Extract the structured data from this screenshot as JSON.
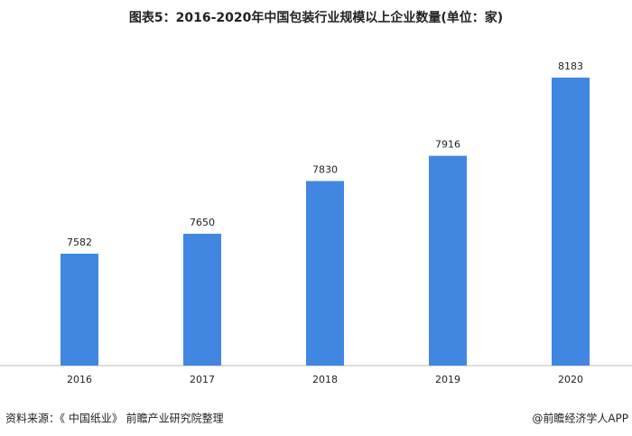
{
  "chart_data": {
    "type": "bar",
    "title": "图表5：2016-2020年中国包装行业规模以上企业数量(单位：家)",
    "categories": [
      "2016",
      "2017",
      "2018",
      "2019",
      "2020"
    ],
    "values": [
      7582,
      7650,
      7830,
      7916,
      8183
    ],
    "color": "#4187e2",
    "ylim": [
      7200,
      8300
    ],
    "source": "资料来源：《 中国纸业》 前瞻产业研究院整理",
    "credit": "@前瞻经济学人APP"
  }
}
